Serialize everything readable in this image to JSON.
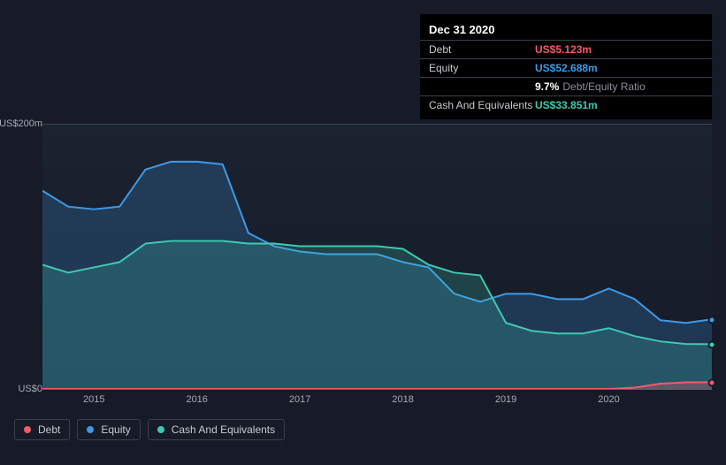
{
  "tooltip": {
    "title": "Dec 31 2020",
    "rows": [
      {
        "label": "Debt",
        "value": "US$5.123m",
        "color": "#f25b6a"
      },
      {
        "label": "Equity",
        "value": "US$52.688m",
        "color": "#3e9ae8"
      },
      {
        "label": "",
        "value": "9.7%",
        "suffix": "Debt/Equity Ratio",
        "color": "#ffffff"
      },
      {
        "label": "Cash And Equivalents",
        "value": "US$33.851m",
        "color": "#3fc9b3"
      }
    ]
  },
  "chart": {
    "type": "area",
    "background_color": "#161b27",
    "grid_color": "#3a3f4a",
    "baseline_color": "#55606e",
    "ylim": [
      0,
      200
    ],
    "y_ticks": [
      {
        "v": 200,
        "label": "US$200m"
      },
      {
        "v": 0,
        "label": "US$0"
      }
    ],
    "x_years": [
      2015,
      2016,
      2017,
      2018,
      2019,
      2020
    ],
    "x_domain": [
      2014.5,
      2021.0
    ],
    "series": [
      {
        "name": "Equity",
        "color": "#3e9ae8",
        "fill_opacity": 0.22,
        "line_width": 2,
        "points": [
          [
            2014.5,
            150
          ],
          [
            2014.75,
            138
          ],
          [
            2015.0,
            136
          ],
          [
            2015.25,
            138
          ],
          [
            2015.5,
            166
          ],
          [
            2015.75,
            172
          ],
          [
            2016.0,
            172
          ],
          [
            2016.25,
            170
          ],
          [
            2016.5,
            118
          ],
          [
            2016.75,
            108
          ],
          [
            2017.0,
            104
          ],
          [
            2017.25,
            102
          ],
          [
            2017.5,
            102
          ],
          [
            2017.75,
            102
          ],
          [
            2018.0,
            96
          ],
          [
            2018.25,
            92
          ],
          [
            2018.5,
            72
          ],
          [
            2018.75,
            66
          ],
          [
            2019.0,
            72
          ],
          [
            2019.25,
            72
          ],
          [
            2019.5,
            68
          ],
          [
            2019.75,
            68
          ],
          [
            2020.0,
            76
          ],
          [
            2020.25,
            68
          ],
          [
            2020.5,
            52
          ],
          [
            2020.75,
            50
          ],
          [
            2021.0,
            52.688
          ]
        ]
      },
      {
        "name": "Cash And Equivalents",
        "color": "#3fc9b3",
        "fill_opacity": 0.22,
        "line_width": 2,
        "points": [
          [
            2014.5,
            94
          ],
          [
            2014.75,
            88
          ],
          [
            2015.0,
            92
          ],
          [
            2015.25,
            96
          ],
          [
            2015.5,
            110
          ],
          [
            2015.75,
            112
          ],
          [
            2016.0,
            112
          ],
          [
            2016.25,
            112
          ],
          [
            2016.5,
            110
          ],
          [
            2016.75,
            110
          ],
          [
            2017.0,
            108
          ],
          [
            2017.25,
            108
          ],
          [
            2017.5,
            108
          ],
          [
            2017.75,
            108
          ],
          [
            2018.0,
            106
          ],
          [
            2018.25,
            94
          ],
          [
            2018.5,
            88
          ],
          [
            2018.75,
            86
          ],
          [
            2019.0,
            50
          ],
          [
            2019.25,
            44
          ],
          [
            2019.5,
            42
          ],
          [
            2019.75,
            42
          ],
          [
            2020.0,
            46
          ],
          [
            2020.25,
            40
          ],
          [
            2020.5,
            36
          ],
          [
            2020.75,
            34
          ],
          [
            2021.0,
            33.851
          ]
        ]
      },
      {
        "name": "Debt",
        "color": "#f25b6a",
        "fill_opacity": 0.3,
        "line_width": 2,
        "points": [
          [
            2014.5,
            0
          ],
          [
            2015.0,
            0
          ],
          [
            2015.5,
            0
          ],
          [
            2016.0,
            0
          ],
          [
            2016.5,
            0
          ],
          [
            2017.0,
            0
          ],
          [
            2017.5,
            0
          ],
          [
            2018.0,
            0
          ],
          [
            2018.5,
            0
          ],
          [
            2019.0,
            0
          ],
          [
            2019.5,
            0
          ],
          [
            2020.0,
            0
          ],
          [
            2020.25,
            1
          ],
          [
            2020.5,
            4
          ],
          [
            2020.75,
            5
          ],
          [
            2021.0,
            5.123
          ]
        ]
      }
    ],
    "markers": [
      {
        "x": 2021.0,
        "y": 52.688,
        "color": "#3e9ae8"
      },
      {
        "x": 2021.0,
        "y": 33.851,
        "color": "#3fc9b3"
      },
      {
        "x": 2021.0,
        "y": 5.123,
        "color": "#f25b6a"
      }
    ],
    "legend": [
      {
        "label": "Debt",
        "color": "#f25b6a"
      },
      {
        "label": "Equity",
        "color": "#3e9ae8"
      },
      {
        "label": "Cash And Equivalents",
        "color": "#3fc9b3"
      }
    ],
    "label_fontsize": 11,
    "label_color": "#a7abb3"
  }
}
